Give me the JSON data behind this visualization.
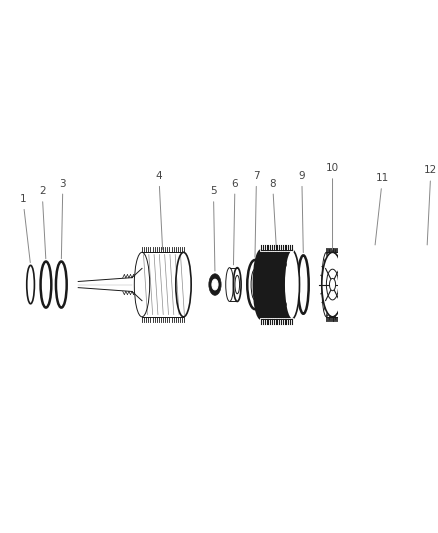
{
  "background_color": "#ffffff",
  "fig_width": 4.38,
  "fig_height": 5.33,
  "dpi": 100,
  "font_size_label": 7.5,
  "label_color": "#444444"
}
